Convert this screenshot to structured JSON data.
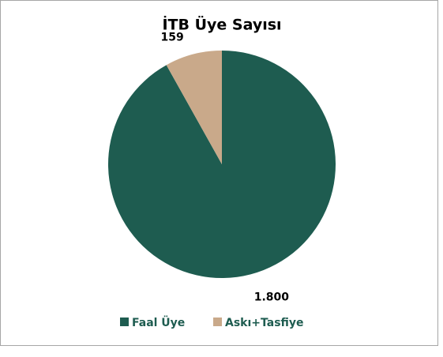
{
  "chart_data": {
    "type": "pie",
    "title": "İTB Üye Sayısı",
    "categories": [
      "Faal Üye",
      "Askı+Tasfiye"
    ],
    "values": [
      1800,
      159
    ],
    "value_labels": [
      "1.800",
      "159"
    ],
    "colors": [
      "#1e5c50",
      "#c9a98a"
    ],
    "legend": "bottom"
  }
}
